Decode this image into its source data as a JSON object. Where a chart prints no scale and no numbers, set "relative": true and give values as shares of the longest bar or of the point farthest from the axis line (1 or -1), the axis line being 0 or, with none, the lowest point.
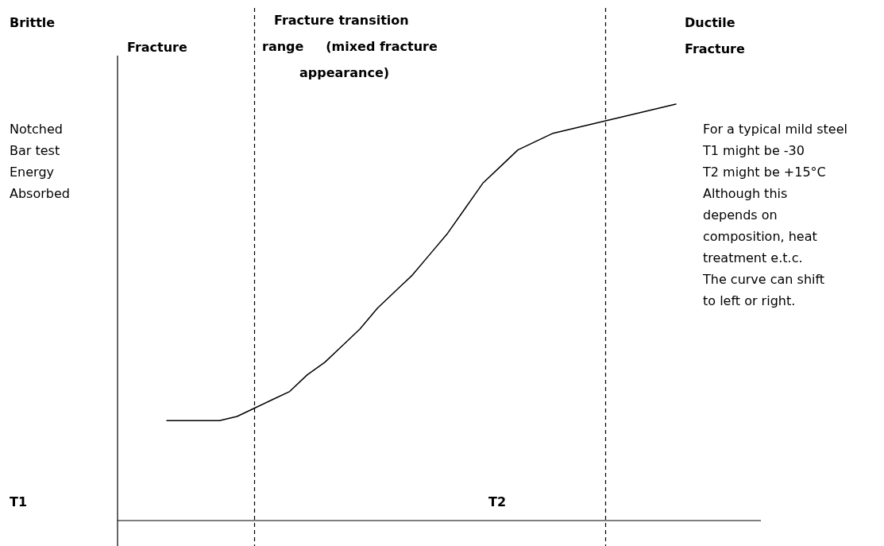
{
  "chart_data": {
    "type": "line",
    "relative": true,
    "line_style": "solid",
    "categories": [
      null,
      null,
      null,
      null,
      null,
      null,
      null,
      null,
      null,
      null,
      null,
      null,
      null,
      null,
      null,
      null,
      null,
      null,
      null,
      null,
      null,
      null,
      null,
      null,
      null,
      null,
      null,
      null,
      null,
      null
    ],
    "series": [
      {
        "color": "#000000",
        "values": [
          0.24,
          0.24,
          0.24,
          0.24,
          0.25,
          0.27,
          0.29,
          0.31,
          0.35,
          0.38,
          0.42,
          0.46,
          0.51,
          0.55,
          0.59,
          0.64,
          0.69,
          0.75,
          0.81,
          0.85,
          0.89,
          0.91,
          0.93,
          0.94,
          0.95,
          0.96,
          0.97,
          0.98,
          0.99,
          1.0
        ]
      }
    ],
    "annotations": [
      "Notched\nBar test\nEnergy\nAbsorbed",
      "Brittle",
      "Fracture",
      "Fracture transition\nrange     (mixed fracture\nappearance)",
      "Ductile\nFracture",
      "T1",
      "T2",
      "For a typical mild steel\nT1 might be -30\nT2 might be +15°C\nAlthough this\ndepends on\ncomposition, heat\ntreatment e.t.c.\nThe curve can shift\nto left or right."
    ]
  }
}
